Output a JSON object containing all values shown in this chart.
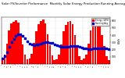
{
  "title": "Solar PV/Inverter Performance  Monthly Solar Energy Production Running Average",
  "title_fontsize": 2.8,
  "bar_color": "#ff0000",
  "avg_color": "#0000cc",
  "background_color": "#ffffff",
  "grid_color": "#cccccc",
  "ylabel": "kWh",
  "ylabel_fontsize": 2.5,
  "values": [
    80,
    130,
    280,
    470,
    560,
    590,
    610,
    570,
    420,
    270,
    130,
    60,
    75,
    140,
    290,
    460,
    550,
    600,
    620,
    560,
    410,
    260,
    120,
    55,
    70,
    125,
    270,
    450,
    540,
    580,
    600,
    550,
    400,
    250,
    110,
    50,
    78,
    132,
    282,
    462,
    542,
    582,
    602,
    552,
    402,
    252,
    112,
    52
  ],
  "running_avg": [
    80,
    105,
    163,
    240,
    304,
    352,
    389,
    414,
    413,
    391,
    356,
    316,
    287,
    268,
    263,
    267,
    274,
    283,
    292,
    299,
    301,
    297,
    288,
    273,
    258,
    244,
    237,
    235,
    237,
    241,
    247,
    251,
    250,
    247,
    240,
    230,
    220,
    215,
    211,
    211,
    213,
    216,
    219,
    221,
    221,
    218,
    213,
    207
  ],
  "ylim": [
    0,
    650
  ],
  "ytick_vals": [
    100,
    200,
    300,
    400,
    500,
    600
  ],
  "n_bars": 48,
  "legend_labels": [
    "Energy (kWh)",
    "Running Avg"
  ],
  "legend_colors": [
    "#ff0000",
    "#0000cc"
  ],
  "dashed_vert_every": 12
}
